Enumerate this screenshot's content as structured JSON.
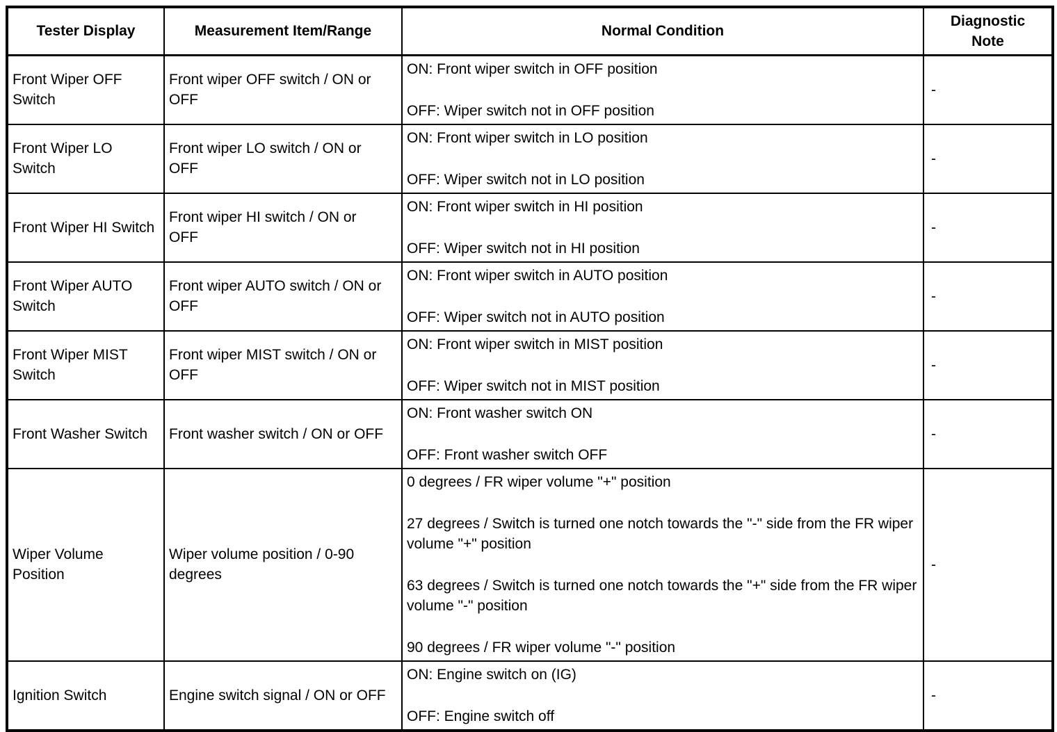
{
  "table": {
    "headers": [
      "Tester Display",
      "Measurement Item/Range",
      "Normal Condition",
      "Diagnostic\nNote"
    ],
    "rows": [
      {
        "tester_display": "Front Wiper OFF Switch",
        "measurement": "Front wiper OFF switch / ON or OFF",
        "conditions": [
          "ON: Front wiper switch in OFF position",
          "OFF: Wiper switch not in OFF position"
        ],
        "note": "-"
      },
      {
        "tester_display": "Front Wiper LO Switch",
        "measurement": "Front wiper LO switch / ON or OFF",
        "conditions": [
          "ON: Front wiper switch in LO position",
          "OFF: Wiper switch not in LO position"
        ],
        "note": "-"
      },
      {
        "tester_display": "Front Wiper HI Switch",
        "measurement": "Front wiper HI switch / ON or OFF",
        "conditions": [
          "ON: Front wiper switch in HI position",
          "OFF: Wiper switch not in HI position"
        ],
        "note": "-"
      },
      {
        "tester_display": "Front Wiper AUTO Switch",
        "measurement": "Front wiper AUTO switch / ON or OFF",
        "conditions": [
          "ON: Front wiper switch in AUTO position",
          "OFF: Wiper switch not in AUTO position"
        ],
        "note": "-"
      },
      {
        "tester_display": "Front Wiper MIST Switch",
        "measurement": "Front wiper MIST switch / ON or OFF",
        "conditions": [
          "ON: Front wiper switch in MIST position",
          "OFF: Wiper switch not in MIST position"
        ],
        "note": "-"
      },
      {
        "tester_display": "Front Washer Switch",
        "measurement": "Front washer switch / ON or OFF",
        "conditions": [
          "ON: Front washer switch ON",
          "OFF: Front washer switch OFF"
        ],
        "note": "-"
      },
      {
        "tester_display": "Wiper Volume Position",
        "measurement": "Wiper volume position / 0-90 degrees",
        "conditions": [
          "0 degrees / FR wiper volume \"+\" position",
          "27 degrees / Switch is turned one notch towards the \"-\" side from the FR wiper volume \"+\" position",
          "63 degrees / Switch is turned one notch towards the \"+\" side from the FR wiper volume \"-\" position",
          "90 degrees / FR wiper volume \"-\" position"
        ],
        "note": "-"
      },
      {
        "tester_display": "Ignition Switch",
        "measurement": "Engine switch signal / ON or OFF",
        "conditions": [
          "ON: Engine switch on (IG)",
          "OFF: Engine switch off"
        ],
        "note": "-"
      }
    ]
  }
}
